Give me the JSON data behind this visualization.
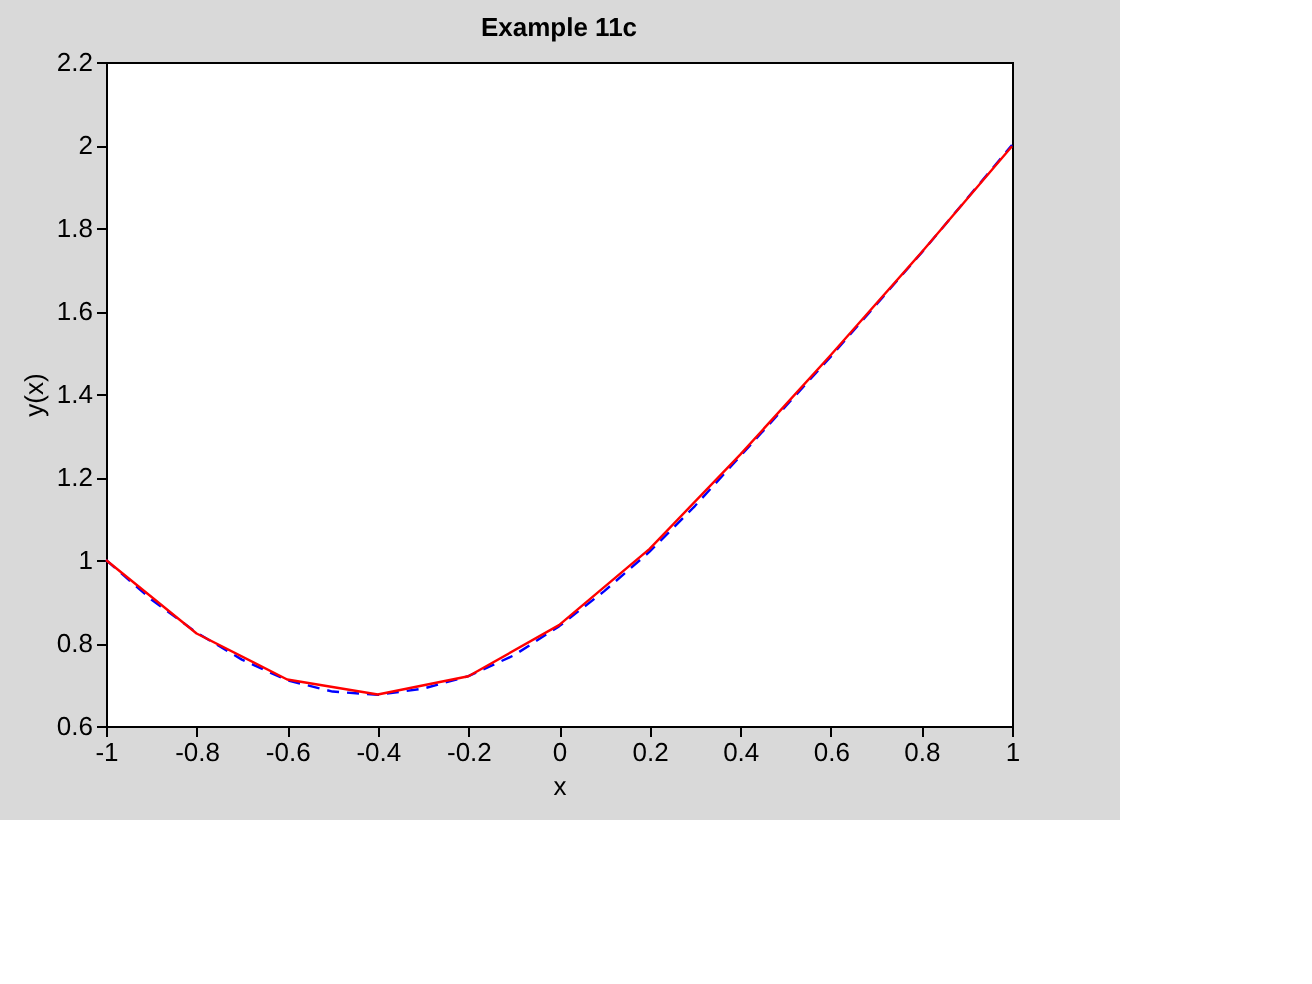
{
  "chart_data": {
    "type": "line",
    "title": "Example 11c",
    "xlabel": "x",
    "ylabel": "y(x)",
    "xlim": [
      -1,
      1
    ],
    "ylim": [
      0.6,
      2.2
    ],
    "xticks": [
      -1,
      -0.8,
      -0.6,
      -0.4,
      -0.2,
      0,
      0.2,
      0.4,
      0.6,
      0.8,
      1
    ],
    "yticks": [
      0.6,
      0.8,
      1,
      1.2,
      1.4,
      1.6,
      1.8,
      2,
      2.2
    ],
    "grid": false,
    "marker": "none",
    "series": [
      {
        "color": "#0000ff",
        "line_style": "dashed",
        "x": [
          -1,
          -0.9,
          -0.8,
          -0.7,
          -0.6,
          -0.5,
          -0.4,
          -0.3,
          -0.2,
          -0.1,
          0,
          0.1,
          0.2,
          0.3,
          0.4,
          0.5,
          0.6,
          0.7,
          0.8,
          0.9,
          1
        ],
        "values": [
          1.0,
          0.905,
          0.825,
          0.76,
          0.71,
          0.683,
          0.675,
          0.69,
          0.72,
          0.77,
          0.84,
          0.925,
          1.02,
          1.13,
          1.25,
          1.37,
          1.49,
          1.615,
          1.74,
          1.87,
          2.0
        ]
      },
      {
        "color": "#ff0000",
        "line_style": "solid",
        "x": [
          -1,
          -0.8,
          -0.6,
          -0.4,
          -0.2,
          0,
          0.2,
          0.4,
          0.6,
          0.8,
          1
        ],
        "values": [
          1.0,
          0.823,
          0.712,
          0.676,
          0.72,
          0.843,
          1.027,
          1.254,
          1.494,
          1.741,
          1.997
        ]
      }
    ]
  }
}
